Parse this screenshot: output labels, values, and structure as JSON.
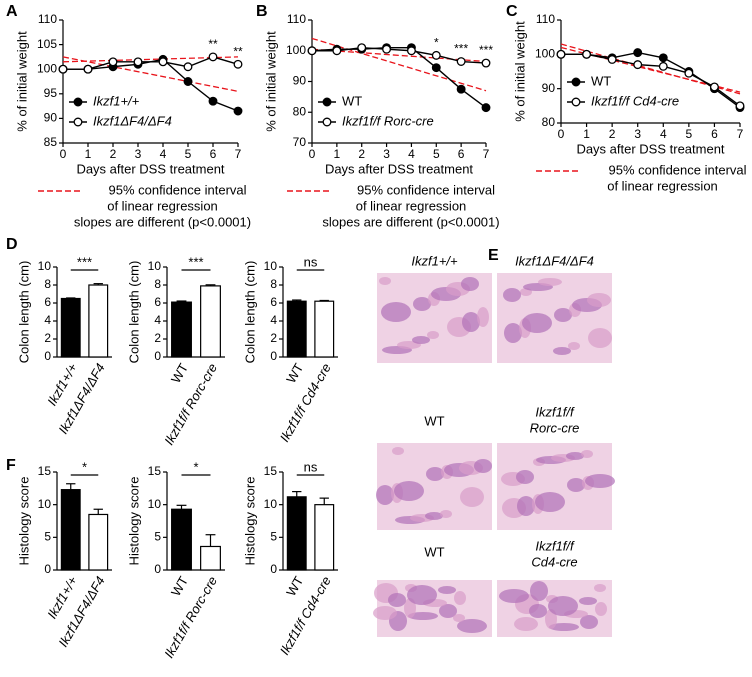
{
  "panel_labels": [
    "A",
    "B",
    "C",
    "D",
    "E",
    "F"
  ],
  "histology": {
    "labels": [
      [
        "Ikzf1+/+"
      ],
      [
        "Ikzf1ΔF4/ΔF4"
      ],
      [
        "WT"
      ],
      [
        "Ikzf1f/f",
        "Rorc-cre"
      ],
      [
        "WT"
      ],
      [
        "Ikzf1f/f",
        "Cd4-cre"
      ]
    ]
  },
  "chart_data": [
    {
      "type": "line",
      "ylabel": "% of initial weight",
      "xlabel": "Days after DSS treatment",
      "x": [
        0,
        1,
        2,
        3,
        4,
        5,
        6,
        7
      ],
      "xlim": [
        0,
        7
      ],
      "xticks": [
        0,
        1,
        2,
        3,
        4,
        5,
        6,
        7
      ],
      "ylim": [
        85,
        110
      ],
      "yticks": [
        85,
        90,
        95,
        100,
        105,
        110
      ],
      "legend": "lower left",
      "series": [
        {
          "name": "Ikzf1+/+",
          "marker": "filled",
          "values": [
            100,
            100,
            100.5,
            101,
            102,
            97.5,
            93.5,
            91.5
          ]
        },
        {
          "name": "Ikzf1ΔF4/ΔF4",
          "marker": "open",
          "values": [
            100,
            100,
            101.5,
            101.5,
            101.5,
            100.5,
            102.5,
            101
          ]
        }
      ],
      "annotations": [
        {
          "x": 6,
          "text": "**"
        },
        {
          "x": 7,
          "text": "**"
        }
      ],
      "regression": {
        "color": "#e8141b",
        "fits": [
          [
            102.5,
            95.5
          ],
          [
            101.5,
            102.5
          ]
        ],
        "note": [
          "95% confidence interval",
          "of linear regression",
          "slopes are different (p<0.0001)"
        ]
      }
    },
    {
      "type": "line",
      "ylabel": "% of initial weight",
      "xlabel": "Days after DSS treatment",
      "x": [
        0,
        1,
        2,
        3,
        4,
        5,
        6,
        7
      ],
      "xlim": [
        0,
        7
      ],
      "xticks": [
        0,
        1,
        2,
        3,
        4,
        5,
        6,
        7
      ],
      "ylim": [
        70,
        110
      ],
      "yticks": [
        70,
        80,
        90,
        100,
        110
      ],
      "legend": "lower left",
      "series": [
        {
          "name": "WT",
          "marker": "filled",
          "values": [
            100,
            100.5,
            100.5,
            101,
            101,
            94.5,
            87.5,
            81.5
          ]
        },
        {
          "name": "Ikzf1f/f Rorc-cre",
          "marker": "open",
          "values": [
            100,
            100,
            101,
            100.5,
            100,
            98.5,
            96.5,
            96
          ]
        }
      ],
      "annotations": [
        {
          "x": 5,
          "text": "*"
        },
        {
          "x": 6,
          "text": "***"
        },
        {
          "x": 7,
          "text": "***"
        }
      ],
      "regression": {
        "color": "#e8141b",
        "fits": [
          [
            104,
            87
          ],
          [
            100.5,
            96.5
          ]
        ],
        "note": [
          "95% confidence interval",
          "of linear regression",
          "slopes are different (p<0.0001)"
        ]
      }
    },
    {
      "type": "line",
      "ylabel": "% of initial weight",
      "xlabel": "Days after DSS treatment",
      "x": [
        0,
        1,
        2,
        3,
        4,
        5,
        6,
        7
      ],
      "xlim": [
        0,
        7
      ],
      "xticks": [
        0,
        1,
        2,
        3,
        4,
        5,
        6,
        7
      ],
      "ylim": [
        80,
        110
      ],
      "yticks": [
        80,
        90,
        100,
        110
      ],
      "legend": "lower left",
      "series": [
        {
          "name": "WT",
          "marker": "filled",
          "values": [
            100,
            100,
            99,
            100.5,
            99,
            95,
            90,
            84.5
          ]
        },
        {
          "name": "Ikzf1f/f Cd4-cre",
          "marker": "open",
          "values": [
            100,
            100,
            98.5,
            97,
            96.5,
            94.5,
            90.5,
            85
          ]
        }
      ],
      "annotations": [],
      "regression": {
        "color": "#e8141b",
        "fits": [
          [
            103,
            88.5
          ],
          [
            102,
            89
          ]
        ],
        "note": [
          "95% confidence interval",
          "of linear regression"
        ]
      }
    },
    {
      "type": "bar",
      "ylabel": "Colon length (cm)",
      "categories": [
        "Ikzf1+/+",
        "Ikzf1ΔF4/ΔF4"
      ],
      "colors": [
        "#000000",
        "#ffffff"
      ],
      "values": [
        6.5,
        8.0
      ],
      "errors": [
        0.06,
        0.15
      ],
      "ylim": [
        0,
        10
      ],
      "yticks": [
        0,
        2,
        4,
        6,
        8,
        10
      ],
      "significance": "***"
    },
    {
      "type": "bar",
      "ylabel": "Colon length (cm)",
      "categories": [
        "WT",
        "Ikzf1f/f Rorc-cre"
      ],
      "colors": [
        "#000000",
        "#ffffff"
      ],
      "values": [
        6.1,
        7.9
      ],
      "errors": [
        0.12,
        0.12
      ],
      "ylim": [
        0,
        10
      ],
      "yticks": [
        0,
        2,
        4,
        6,
        8,
        10
      ],
      "significance": "***"
    },
    {
      "type": "bar",
      "ylabel": "Colon length (cm)",
      "categories": [
        "WT",
        "Ikzf1f/f Cd4-cre"
      ],
      "colors": [
        "#000000",
        "#ffffff"
      ],
      "values": [
        6.2,
        6.2
      ],
      "errors": [
        0.13,
        0.08
      ],
      "ylim": [
        0,
        10
      ],
      "yticks": [
        0,
        2,
        4,
        6,
        8,
        10
      ],
      "significance": "ns"
    },
    {
      "type": "bar",
      "ylabel": "Histology score",
      "categories": [
        "Ikzf1+/+",
        "Ikzf1ΔF4/ΔF4"
      ],
      "colors": [
        "#000000",
        "#ffffff"
      ],
      "values": [
        12.3,
        8.5
      ],
      "errors": [
        0.9,
        0.8
      ],
      "ylim": [
        0,
        15
      ],
      "yticks": [
        0,
        5,
        10,
        15
      ],
      "significance": "*"
    },
    {
      "type": "bar",
      "ylabel": "Histology score",
      "categories": [
        "WT",
        "Ikzf1f/f Rorc-cre"
      ],
      "colors": [
        "#000000",
        "#ffffff"
      ],
      "values": [
        9.3,
        3.6
      ],
      "errors": [
        0.6,
        1.8
      ],
      "ylim": [
        0,
        15
      ],
      "yticks": [
        0,
        5,
        10,
        15
      ],
      "significance": "*"
    },
    {
      "type": "bar",
      "ylabel": "Histology score",
      "categories": [
        "WT",
        "Ikzf1f/f Cd4-cre"
      ],
      "colors": [
        "#000000",
        "#ffffff"
      ],
      "values": [
        11.2,
        10.0
      ],
      "errors": [
        0.8,
        1.0
      ],
      "ylim": [
        0,
        15
      ],
      "yticks": [
        0,
        5,
        10,
        15
      ],
      "significance": "ns"
    }
  ]
}
